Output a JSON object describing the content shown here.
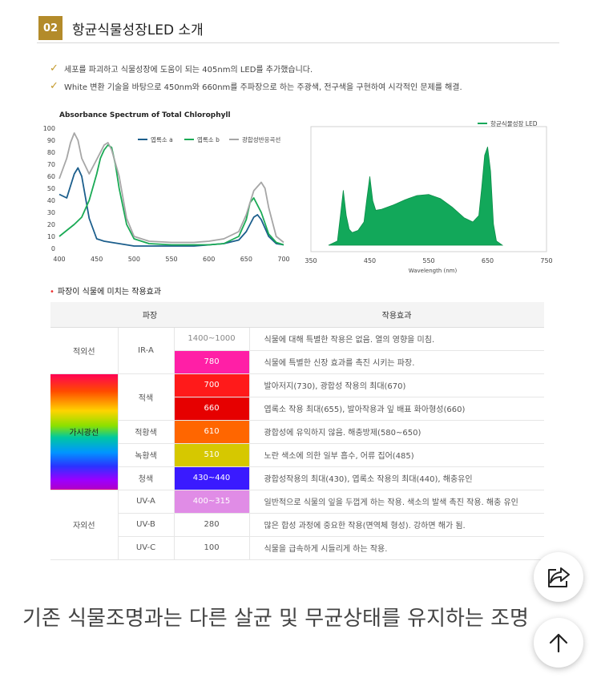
{
  "section": {
    "number": "02",
    "title": "항균식물성장LED 소개"
  },
  "bullets": [
    "세포를 파괴하고 식물성장에 도움이 되는 405nm의 LED를 추가했습니다.",
    "White 변환 기술을 바탕으로 450nm와 660nm를 주파장으로 하는 주광색, 전구색을 구현하여 시각적인 문제를 해결."
  ],
  "chart_data": [
    {
      "type": "line",
      "title": "Absorbance Spectrum of Total Chlorophyll",
      "xlabel": "",
      "ylabel": "",
      "xlim": [
        400,
        700
      ],
      "ylim": [
        0,
        100
      ],
      "x_ticks": [
        400,
        450,
        500,
        550,
        600,
        650,
        700
      ],
      "y_ticks": [
        0,
        10,
        20,
        30,
        40,
        50,
        60,
        70,
        80,
        90,
        100
      ],
      "legend_position": "top",
      "series": [
        {
          "name": "엽록소 a",
          "color": "#1b5e8c",
          "x": [
            400,
            410,
            420,
            425,
            430,
            440,
            450,
            460,
            470,
            480,
            490,
            500,
            520,
            550,
            580,
            600,
            620,
            640,
            650,
            660,
            665,
            670,
            680,
            690,
            700
          ],
          "y": [
            45,
            42,
            62,
            67,
            60,
            25,
            8,
            6,
            5,
            4,
            3,
            2,
            2,
            2,
            2,
            3,
            4,
            7,
            14,
            26,
            28,
            24,
            10,
            4,
            3
          ]
        },
        {
          "name": "엽록소 b",
          "color": "#1aaa55",
          "x": [
            400,
            410,
            420,
            430,
            440,
            450,
            455,
            460,
            465,
            470,
            475,
            480,
            490,
            500,
            520,
            550,
            580,
            600,
            620,
            640,
            650,
            655,
            660,
            670,
            680,
            690,
            700
          ],
          "y": [
            10,
            15,
            20,
            26,
            40,
            62,
            75,
            82,
            86,
            84,
            70,
            50,
            20,
            8,
            4,
            3,
            3,
            3,
            4,
            10,
            24,
            38,
            42,
            30,
            12,
            5,
            3
          ]
        },
        {
          "name": "광합성반응곡선",
          "color": "#a6a6a6",
          "x": [
            400,
            410,
            415,
            420,
            425,
            430,
            440,
            450,
            460,
            465,
            470,
            480,
            490,
            500,
            520,
            550,
            580,
            600,
            620,
            640,
            650,
            660,
            670,
            675,
            680,
            690,
            700
          ],
          "y": [
            58,
            75,
            88,
            96,
            90,
            75,
            62,
            74,
            86,
            88,
            82,
            60,
            25,
            10,
            6,
            5,
            5,
            6,
            8,
            14,
            28,
            48,
            55,
            50,
            34,
            10,
            5
          ]
        }
      ]
    },
    {
      "type": "area",
      "title": "",
      "xlabel": "Wavelength (nm)",
      "ylabel": "",
      "xlim": [
        350,
        750
      ],
      "ylim": [
        0,
        1
      ],
      "x_ticks": [
        350,
        450,
        550,
        650,
        750
      ],
      "legend_position": "top-right",
      "series": [
        {
          "name": "항균식물성장 LED",
          "color": "#12a85a",
          "x": [
            380,
            395,
            400,
            405,
            410,
            415,
            420,
            430,
            440,
            445,
            450,
            455,
            460,
            470,
            490,
            510,
            530,
            550,
            570,
            590,
            610,
            625,
            635,
            640,
            645,
            650,
            655,
            660,
            665,
            675
          ],
          "y": [
            0.0,
            0.04,
            0.28,
            0.52,
            0.28,
            0.15,
            0.12,
            0.14,
            0.22,
            0.44,
            0.65,
            0.42,
            0.33,
            0.34,
            0.38,
            0.43,
            0.47,
            0.48,
            0.44,
            0.36,
            0.26,
            0.22,
            0.28,
            0.55,
            0.85,
            0.93,
            0.7,
            0.2,
            0.04,
            0.0
          ]
        }
      ]
    }
  ],
  "table": {
    "subheading": "파장이 식물에 미치는 작용효과",
    "headers": [
      "파장",
      "작용효과"
    ],
    "rows": [
      {
        "category": "적외선",
        "band": "IR-A",
        "wavelength": "1400~1000",
        "effect": "식물에 대해 특별한 작용은 없음. 열의 영향을 미침."
      },
      {
        "category": "",
        "band": "",
        "wavelength": "780",
        "effect": "식물에 특별한 신장 효과를 촉진 시키는 파장."
      },
      {
        "category": "가시광선",
        "band": "적색",
        "wavelength": "700",
        "effect": "발아저지(730), 광합성 작용의 최대(670)"
      },
      {
        "category": "",
        "band": "",
        "wavelength": "660",
        "effect": "엽록소 작용 최대(655), 발아작용과 잎 배표 화아형성(660)"
      },
      {
        "category": "",
        "band": "적황색",
        "wavelength": "610",
        "effect": "광합성에 유익하지 않음. 해충방제(580~650)"
      },
      {
        "category": "",
        "band": "녹황색",
        "wavelength": "510",
        "effect": "노란 색소에 의한 일부 흡수, 어류 집어(485)"
      },
      {
        "category": "",
        "band": "청색",
        "wavelength": "430~440",
        "effect": "광합성작용의 최대(430), 엽록소 작용의 최대(440), 해충유인"
      },
      {
        "category": "자외선",
        "band": "UV-A",
        "wavelength": "400~315",
        "effect": "일반적으로 식물의 잎을 두껍게 하는 작용. 색소의 발색 촉진 작용. 해충 유인"
      },
      {
        "category": "",
        "band": "UV-B",
        "wavelength": "280",
        "effect": "많은 합성 과정에 중요한 작용(면역체 형성). 강하면 해가 됨."
      },
      {
        "category": "",
        "band": "UV-C",
        "wavelength": "100",
        "effect": "식물을 급속하게 시들리게 하는 작용."
      }
    ],
    "swatch_colors": {
      "780": "#ff1fa6",
      "700": "#ff1a1a",
      "660": "#e60000",
      "610": "#ff6600",
      "510": "#d6c800",
      "430~440": "#3a1aff",
      "400~315": "#e08ce6"
    }
  },
  "bottom_text": "기존 식물조명과는 다른 살균 및 무균상태를 유지하는 조명",
  "icons": {
    "share": "share-icon",
    "scroll_top": "arrow-up-icon",
    "check": "check-icon"
  }
}
